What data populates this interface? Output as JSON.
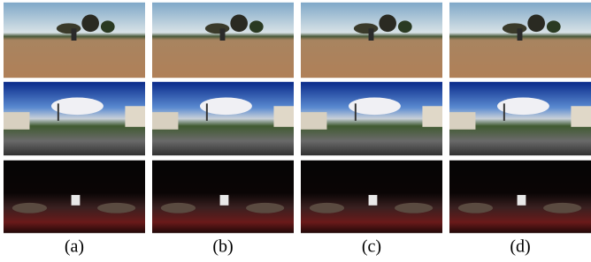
{
  "figure": {
    "labels": [
      "(a)",
      "(b)",
      "(c)",
      "(d)"
    ]
  }
}
